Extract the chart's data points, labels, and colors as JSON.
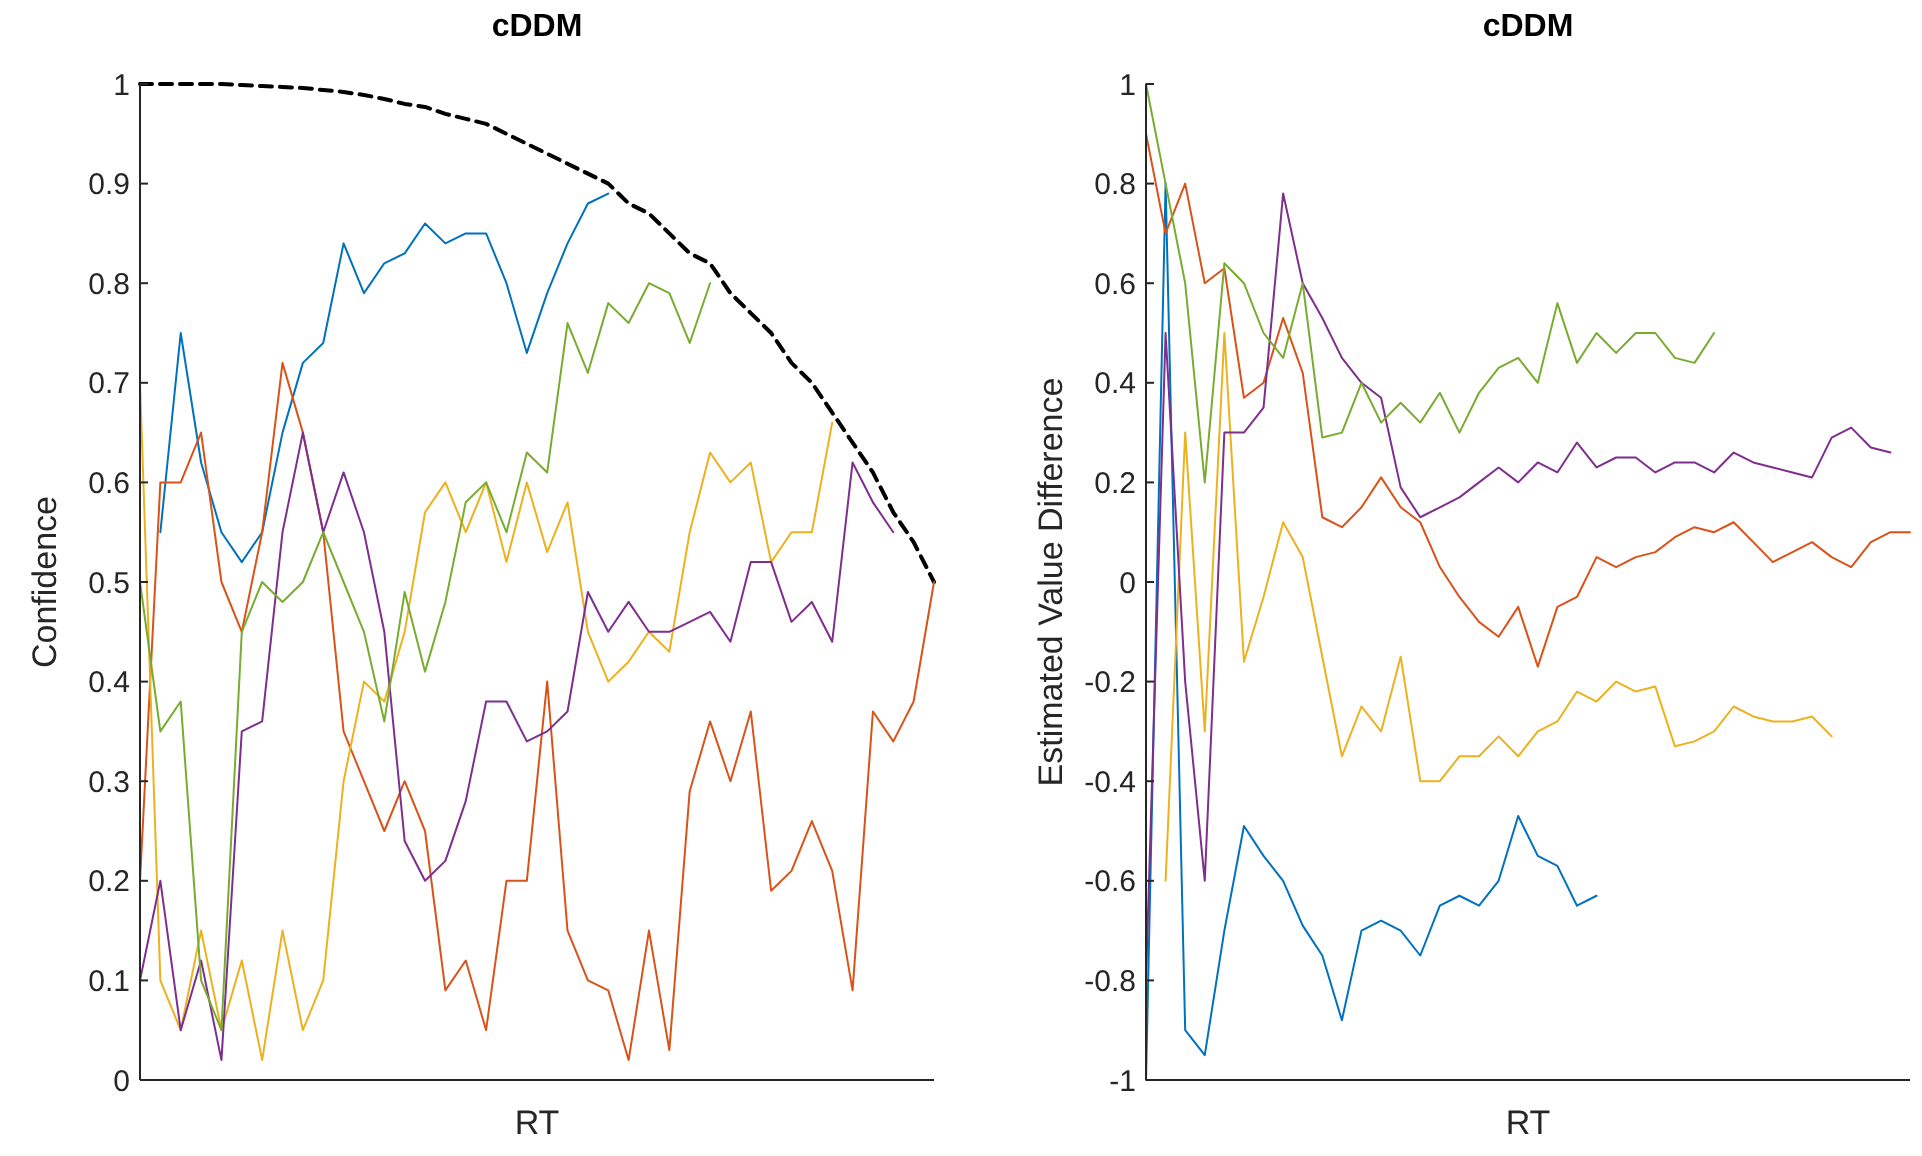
{
  "chart_data": [
    {
      "type": "line",
      "title": "cDDM",
      "xlabel": "RT",
      "ylabel": "Confidence",
      "tick_labels": "y",
      "ylim": [
        0,
        1
      ],
      "yticks": [
        0,
        0.1,
        0.2,
        0.3,
        0.4,
        0.5,
        0.6,
        0.7,
        0.8,
        0.9,
        1
      ],
      "categories": [
        null,
        null,
        null,
        null,
        null,
        null,
        null,
        null,
        null,
        null,
        null,
        null,
        null,
        null,
        null,
        null,
        null,
        null,
        null,
        null,
        null,
        null,
        null,
        null,
        null,
        null,
        null,
        null,
        null,
        null,
        null,
        null,
        null,
        null,
        null,
        null,
        null,
        null,
        null,
        null
      ],
      "series": [
        {
          "color": "#000000",
          "line_style": "dashed",
          "values": [
            1.0,
            1.0,
            1.0,
            1.0,
            1.0,
            0.999,
            0.998,
            0.997,
            0.996,
            0.994,
            0.992,
            0.989,
            0.985,
            0.98,
            0.977,
            0.97,
            0.965,
            0.96,
            0.95,
            0.94,
            0.93,
            0.92,
            0.91,
            0.9,
            0.88,
            0.87,
            0.85,
            0.83,
            0.82,
            0.79,
            0.77,
            0.75,
            0.72,
            0.7,
            0.67,
            0.64,
            0.61,
            0.57,
            0.54,
            0.5
          ]
        },
        {
          "color": "#0072bd",
          "values": [
            null,
            0.55,
            0.75,
            0.62,
            0.55,
            0.52,
            0.55,
            0.65,
            0.72,
            0.74,
            0.84,
            0.79,
            0.82,
            0.83,
            0.86,
            0.84,
            0.85,
            0.85,
            0.8,
            0.73,
            0.79,
            0.84,
            0.88,
            0.89,
            null,
            null,
            null,
            null,
            null,
            null,
            null,
            null,
            null,
            null,
            null,
            null,
            null,
            null,
            null,
            null
          ]
        },
        {
          "color": "#d95319",
          "values": [
            0.2,
            0.6,
            0.6,
            0.65,
            0.5,
            0.45,
            0.55,
            0.72,
            0.65,
            0.55,
            0.35,
            0.3,
            0.25,
            0.3,
            0.25,
            0.09,
            0.12,
            0.05,
            0.2,
            0.2,
            0.4,
            0.15,
            0.1,
            0.09,
            0.02,
            0.15,
            0.03,
            0.29,
            0.36,
            0.3,
            0.37,
            0.19,
            0.21,
            0.26,
            0.21,
            0.09,
            0.37,
            0.34,
            0.38,
            0.5
          ]
        },
        {
          "color": "#edb120",
          "values": [
            0.7,
            0.1,
            0.05,
            0.15,
            0.05,
            0.12,
            0.02,
            0.15,
            0.05,
            0.1,
            0.3,
            0.4,
            0.38,
            0.45,
            0.57,
            0.6,
            0.55,
            0.6,
            0.52,
            0.6,
            0.53,
            0.58,
            0.45,
            0.4,
            0.42,
            0.45,
            0.43,
            0.55,
            0.63,
            0.6,
            0.62,
            0.52,
            0.55,
            0.55,
            0.66,
            null,
            null,
            null,
            null,
            null
          ]
        },
        {
          "color": "#7e2f8e",
          "values": [
            0.1,
            0.2,
            0.05,
            0.12,
            0.02,
            0.35,
            0.36,
            0.55,
            0.65,
            0.55,
            0.61,
            0.55,
            0.45,
            0.24,
            0.2,
            0.22,
            0.28,
            0.38,
            0.38,
            0.34,
            0.35,
            0.37,
            0.49,
            0.45,
            0.48,
            0.45,
            0.45,
            0.46,
            0.47,
            0.44,
            0.52,
            0.52,
            0.46,
            0.48,
            0.44,
            0.62,
            0.58,
            0.55,
            null,
            null
          ]
        },
        {
          "color": "#77ac30",
          "values": [
            0.5,
            0.35,
            0.38,
            0.1,
            0.05,
            0.45,
            0.5,
            0.48,
            0.5,
            0.55,
            0.5,
            0.45,
            0.36,
            0.49,
            0.41,
            0.48,
            0.58,
            0.6,
            0.55,
            0.63,
            0.61,
            0.76,
            0.71,
            0.78,
            0.76,
            0.8,
            0.79,
            0.74,
            0.8,
            null,
            null,
            null,
            null,
            null,
            null,
            null,
            null,
            null,
            null,
            null
          ]
        }
      ]
    },
    {
      "type": "line",
      "title": "cDDM",
      "xlabel": "RT",
      "ylabel": "Estimated Value Difference",
      "tick_labels": "y",
      "ylim": [
        -1,
        1
      ],
      "yticks": [
        -1,
        -0.8,
        -0.6,
        -0.4,
        -0.2,
        0,
        0.2,
        0.4,
        0.6,
        0.8,
        1
      ],
      "categories": [
        null,
        null,
        null,
        null,
        null,
        null,
        null,
        null,
        null,
        null,
        null,
        null,
        null,
        null,
        null,
        null,
        null,
        null,
        null,
        null,
        null,
        null,
        null,
        null,
        null,
        null,
        null,
        null,
        null,
        null,
        null,
        null,
        null,
        null,
        null,
        null,
        null,
        null,
        null,
        null
      ],
      "series": [
        {
          "color": "#0072bd",
          "values": [
            -1,
            0.8,
            -0.9,
            -0.95,
            -0.7,
            -0.49,
            -0.55,
            -0.6,
            -0.69,
            -0.75,
            -0.88,
            -0.7,
            -0.68,
            -0.7,
            -0.75,
            -0.65,
            -0.63,
            -0.65,
            -0.6,
            -0.47,
            -0.55,
            -0.57,
            -0.65,
            -0.63,
            null,
            null,
            null,
            null,
            null,
            null,
            null,
            null,
            null,
            null,
            null,
            null,
            null,
            null,
            null,
            null
          ]
        },
        {
          "color": "#d95319",
          "values": [
            0.9,
            0.7,
            0.8,
            0.6,
            0.63,
            0.37,
            0.4,
            0.53,
            0.42,
            0.13,
            0.11,
            0.15,
            0.21,
            0.15,
            0.12,
            0.03,
            -0.03,
            -0.08,
            -0.11,
            -0.05,
            -0.17,
            -0.05,
            -0.03,
            0.05,
            0.03,
            0.05,
            0.06,
            0.09,
            0.11,
            0.1,
            0.12,
            0.08,
            0.04,
            0.06,
            0.08,
            0.05,
            0.03,
            0.08,
            0.1,
            0.1
          ]
        },
        {
          "color": "#edb120",
          "values": [
            null,
            -0.6,
            0.3,
            -0.3,
            0.5,
            -0.16,
            -0.03,
            0.12,
            0.05,
            -0.15,
            -0.35,
            -0.25,
            -0.3,
            -0.15,
            -0.4,
            -0.4,
            -0.35,
            -0.35,
            -0.31,
            -0.35,
            -0.3,
            -0.28,
            -0.22,
            -0.24,
            -0.2,
            -0.22,
            -0.21,
            -0.33,
            -0.32,
            -0.3,
            -0.25,
            -0.27,
            -0.28,
            -0.28,
            -0.27,
            -0.31,
            null,
            null,
            null,
            null
          ]
        },
        {
          "color": "#7e2f8e",
          "values": [
            -0.8,
            0.5,
            -0.2,
            -0.6,
            0.3,
            0.3,
            0.35,
            0.78,
            0.6,
            0.53,
            0.45,
            0.4,
            0.37,
            0.19,
            0.13,
            0.15,
            0.17,
            0.2,
            0.23,
            0.2,
            0.24,
            0.22,
            0.28,
            0.23,
            0.25,
            0.25,
            0.22,
            0.24,
            0.24,
            0.22,
            0.26,
            0.24,
            0.23,
            0.22,
            0.21,
            0.29,
            0.31,
            0.27,
            0.26,
            null
          ]
        },
        {
          "color": "#77ac30",
          "values": [
            1,
            0.8,
            0.6,
            0.2,
            0.64,
            0.6,
            0.5,
            0.45,
            0.6,
            0.29,
            0.3,
            0.4,
            0.32,
            0.36,
            0.32,
            0.38,
            0.3,
            0.38,
            0.43,
            0.45,
            0.4,
            0.56,
            0.44,
            0.5,
            0.46,
            0.5,
            0.5,
            0.45,
            0.44,
            0.5,
            null,
            null,
            null,
            null,
            null,
            null,
            null,
            null,
            null,
            null
          ]
        }
      ]
    }
  ]
}
